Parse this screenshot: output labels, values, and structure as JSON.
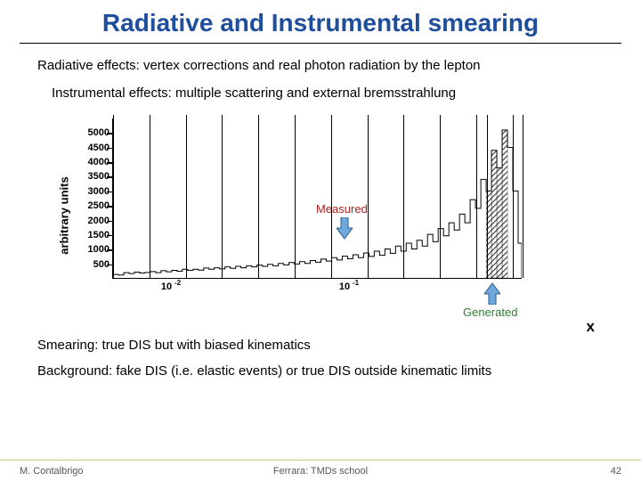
{
  "title": "Radiative and Instrumental smearing",
  "bullets": {
    "radiative": "Radiative effects: vertex corrections and real photon radiation by the lepton",
    "instrumental": "Instrumental effects: multiple scattering and external bremsstrahlung"
  },
  "chart": {
    "type": "histogram",
    "ylabel": "arbitrary units",
    "xlabel": "x",
    "ylim": [
      0,
      5500
    ],
    "yticks": [
      500,
      1000,
      1500,
      2000,
      2500,
      3000,
      3500,
      4000,
      4500,
      5000
    ],
    "ytick_labels": [
      "500",
      "1000",
      "1500",
      "2000",
      "2500",
      "3000",
      "3500",
      "4000",
      "4500",
      "5000"
    ],
    "xscale": "log",
    "xlim_log10": [
      -2.3,
      0
    ],
    "xtick_major_log10": [
      -2,
      -1
    ],
    "xtick_major_labels": [
      "10",
      "10"
    ],
    "xtick_major_sup": [
      "-2",
      "-1"
    ],
    "vlines_log10": [
      -2.3,
      -2.096,
      -1.892,
      -1.688,
      -1.484,
      -1.28,
      -1.076,
      -0.872,
      -0.668,
      -0.464,
      -0.26,
      -0.2,
      -0.056,
      0
    ],
    "hist_bins_log10_edges": [
      -2.3,
      -2.27,
      -2.24,
      -2.21,
      -2.18,
      -2.15,
      -2.12,
      -2.09,
      -2.06,
      -2.03,
      -2.0,
      -1.97,
      -1.94,
      -1.91,
      -1.88,
      -1.85,
      -1.82,
      -1.79,
      -1.76,
      -1.73,
      -1.7,
      -1.67,
      -1.64,
      -1.61,
      -1.58,
      -1.55,
      -1.52,
      -1.49,
      -1.46,
      -1.43,
      -1.4,
      -1.37,
      -1.34,
      -1.31,
      -1.28,
      -1.25,
      -1.22,
      -1.19,
      -1.16,
      -1.13,
      -1.1,
      -1.07,
      -1.04,
      -1.01,
      -0.98,
      -0.95,
      -0.92,
      -0.89,
      -0.86,
      -0.83,
      -0.8,
      -0.77,
      -0.74,
      -0.71,
      -0.68,
      -0.65,
      -0.62,
      -0.59,
      -0.56,
      -0.53,
      -0.5,
      -0.47,
      -0.44,
      -0.41,
      -0.38,
      -0.35,
      -0.32,
      -0.29,
      -0.26,
      -0.23,
      -0.2,
      -0.17,
      -0.14,
      -0.11,
      -0.08,
      -0.05,
      -0.02,
      0.0
    ],
    "hist_values": [
      120,
      100,
      180,
      150,
      200,
      170,
      190,
      220,
      180,
      250,
      210,
      260,
      230,
      300,
      260,
      300,
      270,
      340,
      300,
      350,
      310,
      380,
      330,
      400,
      350,
      420,
      380,
      440,
      400,
      470,
      420,
      500,
      450,
      530,
      480,
      560,
      500,
      600,
      540,
      650,
      580,
      700,
      620,
      750,
      660,
      800,
      700,
      860,
      740,
      920,
      780,
      1000,
      850,
      1100,
      920,
      1200,
      1000,
      1300,
      1100,
      1500,
      1250,
      1700,
      1450,
      1900,
      1650,
      2200,
      1900,
      2700,
      2400,
      3400,
      3000,
      4400,
      3800,
      5100,
      4500,
      3000,
      1200
    ],
    "hatched_region_log10": [
      -0.2,
      -0.056
    ],
    "colors": {
      "axis": "#000000",
      "hist_stroke": "#000000",
      "background": "#ffffff",
      "measured_label": "#b02020",
      "generated_label": "#2e7d32",
      "arrow_fill": "#6fa8dc",
      "arrow_stroke": "#2e5b94"
    },
    "callouts": {
      "measured": "Measured",
      "generated": "Generated"
    }
  },
  "bottom": {
    "smearing": "Smearing: true DIS but with biased kinematics",
    "background": "Background: fake DIS (i.e. elastic events) or true DIS outside kinematic limits"
  },
  "footer": {
    "author": "M. Contalbrigo",
    "venue": "Ferrara: TMDs school",
    "page": "42"
  }
}
